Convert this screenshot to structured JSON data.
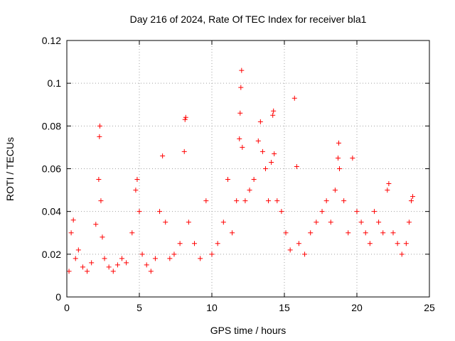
{
  "chart_data": {
    "type": "scatter",
    "title": "Day 216 of 2024, Rate Of TEC Index for receiver bla1",
    "xlabel": "GPS time / hours",
    "ylabel": "ROTI / TECUs",
    "xlim": [
      0,
      25
    ],
    "ylim": [
      0,
      0.12
    ],
    "xticks": [
      0,
      5,
      10,
      15,
      20,
      25
    ],
    "yticks": [
      0,
      0.02,
      0.04,
      0.06,
      0.08,
      0.1,
      0.12
    ],
    "xtick_labels": [
      "0",
      "5",
      "10",
      "15",
      "20",
      "25"
    ],
    "ytick_labels": [
      "0",
      "0.02",
      "0.04",
      "0.06",
      "0.08",
      "0.1",
      "0.12"
    ],
    "grid": true,
    "marker": "plus",
    "color": "#ff0000",
    "series": [
      {
        "name": "ROTI",
        "x": [
          0.15,
          0.3,
          0.45,
          0.6,
          0.8,
          1.1,
          1.4,
          1.7,
          2.0,
          2.2,
          2.25,
          2.28,
          2.35,
          2.45,
          2.6,
          2.9,
          3.2,
          3.5,
          3.8,
          4.1,
          4.5,
          4.75,
          4.85,
          5.0,
          5.2,
          5.5,
          5.8,
          6.1,
          6.4,
          6.6,
          6.8,
          7.1,
          7.4,
          7.8,
          8.1,
          8.15,
          8.2,
          8.4,
          8.8,
          9.2,
          9.6,
          10.0,
          10.4,
          10.8,
          11.1,
          11.4,
          11.7,
          11.9,
          11.95,
          12.0,
          12.05,
          12.1,
          12.3,
          12.6,
          12.9,
          13.2,
          13.35,
          13.5,
          13.7,
          13.9,
          14.1,
          14.2,
          14.25,
          14.3,
          14.5,
          14.8,
          15.1,
          15.4,
          15.7,
          15.85,
          16.0,
          16.4,
          16.8,
          17.2,
          17.6,
          17.9,
          18.2,
          18.5,
          18.7,
          18.75,
          18.8,
          19.1,
          19.4,
          19.7,
          20.0,
          20.3,
          20.6,
          20.9,
          21.2,
          21.5,
          21.8,
          22.1,
          22.2,
          22.5,
          22.8,
          23.1,
          23.4,
          23.6,
          23.75,
          23.85
        ],
        "y": [
          0.012,
          0.03,
          0.036,
          0.018,
          0.022,
          0.014,
          0.012,
          0.016,
          0.034,
          0.055,
          0.075,
          0.08,
          0.045,
          0.028,
          0.018,
          0.014,
          0.012,
          0.015,
          0.018,
          0.016,
          0.03,
          0.05,
          0.055,
          0.04,
          0.02,
          0.015,
          0.012,
          0.018,
          0.04,
          0.066,
          0.035,
          0.018,
          0.02,
          0.025,
          0.068,
          0.083,
          0.084,
          0.035,
          0.025,
          0.018,
          0.045,
          0.02,
          0.025,
          0.035,
          0.055,
          0.03,
          0.045,
          0.074,
          0.086,
          0.098,
          0.106,
          0.07,
          0.045,
          0.05,
          0.055,
          0.073,
          0.082,
          0.068,
          0.06,
          0.045,
          0.063,
          0.085,
          0.087,
          0.067,
          0.045,
          0.04,
          0.03,
          0.022,
          0.093,
          0.061,
          0.025,
          0.02,
          0.03,
          0.035,
          0.04,
          0.045,
          0.035,
          0.05,
          0.065,
          0.072,
          0.06,
          0.045,
          0.03,
          0.065,
          0.04,
          0.035,
          0.03,
          0.025,
          0.04,
          0.035,
          0.03,
          0.05,
          0.053,
          0.03,
          0.025,
          0.02,
          0.025,
          0.035,
          0.045,
          0.047
        ]
      }
    ]
  }
}
